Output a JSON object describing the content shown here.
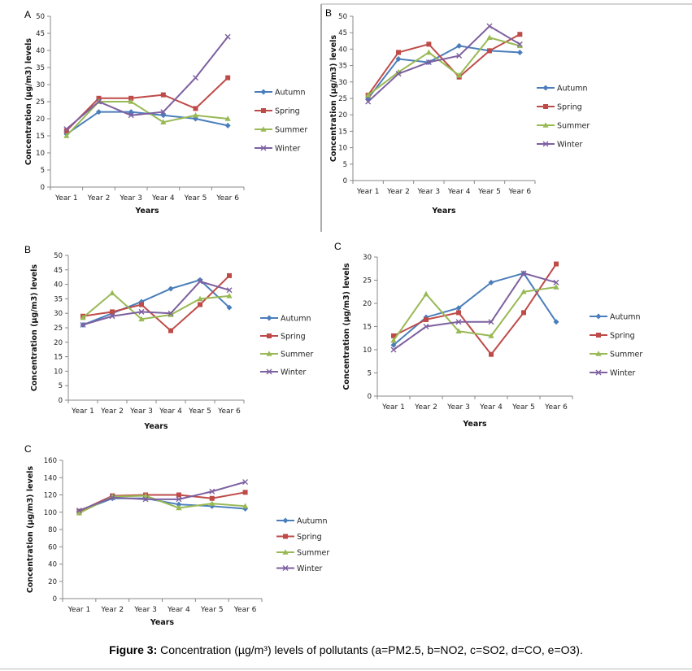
{
  "figure": {
    "caption_label": "Figure 3:",
    "caption_text": "Concentration (µg/m³) levels of pollutants (a=PM2.5, b=NO2, c=SO2, d=CO, e=O3)."
  },
  "colors": {
    "Autumn": "#4a7ebb",
    "Spring": "#be4b48",
    "Summer": "#98b954",
    "Winter": "#7d60a0"
  },
  "chart_data": [
    {
      "type": "line",
      "panel": "A",
      "categories": [
        "Year 1",
        "Year 2",
        "Year 3",
        "Year 4",
        "Year 5",
        "Year 6"
      ],
      "xlabel": "Years",
      "ylabel": "Concentration (µg/m3) levels",
      "ylim": [
        0,
        50
      ],
      "yticks": [
        0,
        5,
        10,
        15,
        20,
        25,
        30,
        35,
        40,
        45,
        50
      ],
      "legend": "right",
      "series": [
        {
          "name": "Autumn",
          "marker": "diamond",
          "values": [
            15.5,
            22,
            22,
            21,
            20,
            18
          ]
        },
        {
          "name": "Spring",
          "marker": "square",
          "values": [
            16.5,
            26,
            26,
            27,
            23,
            32
          ]
        },
        {
          "name": "Summer",
          "marker": "triangle",
          "values": [
            15,
            25,
            25,
            19,
            21,
            20
          ]
        },
        {
          "name": "Winter",
          "marker": "x",
          "values": [
            17,
            25,
            21,
            22,
            32,
            44
          ]
        }
      ]
    },
    {
      "type": "line",
      "panel": "B",
      "categories": [
        "Year 1",
        "Year 2",
        "Year 3",
        "Year 4",
        "Year 5",
        "Year 6"
      ],
      "xlabel": "Years",
      "ylabel": "Concentration (µg/m3) levels",
      "ylim": [
        0,
        50
      ],
      "yticks": [
        0,
        5,
        10,
        15,
        20,
        25,
        30,
        35,
        40,
        45,
        50
      ],
      "legend": "right",
      "series": [
        {
          "name": "Autumn",
          "marker": "diamond",
          "values": [
            25,
            37,
            36,
            41,
            39.5,
            39
          ]
        },
        {
          "name": "Spring",
          "marker": "square",
          "values": [
            26,
            39,
            41.5,
            31.5,
            39.5,
            44.5
          ]
        },
        {
          "name": "Summer",
          "marker": "triangle",
          "values": [
            26,
            33,
            39,
            32,
            43.5,
            41
          ]
        },
        {
          "name": "Winter",
          "marker": "x",
          "values": [
            24,
            32.5,
            36,
            38,
            47,
            41.5
          ]
        }
      ]
    },
    {
      "type": "line",
      "panel": "B",
      "categories": [
        "Year 1",
        "Year 2",
        "Year 3",
        "Year 4",
        "Year 5",
        "Year 6"
      ],
      "xlabel": "Years",
      "ylabel": "Concentration (µg/m3) levels",
      "ylim": [
        0,
        50
      ],
      "yticks": [
        0,
        5,
        10,
        15,
        20,
        25,
        30,
        35,
        40,
        45,
        50
      ],
      "legend": "right",
      "series": [
        {
          "name": "Autumn",
          "marker": "diamond",
          "values": [
            26,
            30,
            34,
            38.5,
            41.5,
            32
          ]
        },
        {
          "name": "Spring",
          "marker": "square",
          "values": [
            29,
            30.5,
            33,
            24,
            33,
            43
          ]
        },
        {
          "name": "Summer",
          "marker": "triangle",
          "values": [
            28.5,
            37,
            28,
            29.5,
            35,
            36
          ]
        },
        {
          "name": "Winter",
          "marker": "x",
          "values": [
            26,
            29,
            30.5,
            30,
            41,
            38
          ]
        }
      ]
    },
    {
      "type": "line",
      "panel": "C",
      "categories": [
        "Year 1",
        "Year 2",
        "Year 3",
        "Year 4",
        "Year 5",
        "Year 6"
      ],
      "xlabel": "Years",
      "ylabel": "Concentration (µg/m3) levels",
      "ylim": [
        0,
        30
      ],
      "yticks": [
        0,
        5,
        10,
        15,
        20,
        25,
        30
      ],
      "legend": "right",
      "series": [
        {
          "name": "Autumn",
          "marker": "diamond",
          "values": [
            11,
            17,
            19,
            24.5,
            26.5,
            16
          ]
        },
        {
          "name": "Spring",
          "marker": "square",
          "values": [
            13,
            16.5,
            18,
            9,
            18,
            28.5
          ]
        },
        {
          "name": "Summer",
          "marker": "triangle",
          "values": [
            12,
            22,
            14,
            13,
            22.5,
            23.5
          ]
        },
        {
          "name": "Winter",
          "marker": "x",
          "values": [
            10,
            15,
            16,
            16,
            26.5,
            24.5
          ]
        }
      ]
    },
    {
      "type": "line",
      "panel": "C",
      "categories": [
        "Year 1",
        "Year 2",
        "Year 3",
        "Year 4",
        "Year 5",
        "Year 6"
      ],
      "xlabel": "Years",
      "ylabel": "Concentration (µg/m3) levels",
      "ylim": [
        0,
        160
      ],
      "yticks": [
        0,
        20,
        40,
        60,
        80,
        100,
        120,
        140,
        160
      ],
      "legend": "right",
      "series": [
        {
          "name": "Autumn",
          "marker": "diamond",
          "values": [
            101,
            116,
            116,
            109,
            107,
            104
          ]
        },
        {
          "name": "Spring",
          "marker": "square",
          "values": [
            101,
            119,
            120,
            120,
            116,
            123
          ]
        },
        {
          "name": "Summer",
          "marker": "triangle",
          "values": [
            99,
            118,
            119,
            105,
            110,
            107
          ]
        },
        {
          "name": "Winter",
          "marker": "x",
          "values": [
            102,
            117,
            115,
            115,
            124,
            135
          ]
        }
      ]
    }
  ]
}
